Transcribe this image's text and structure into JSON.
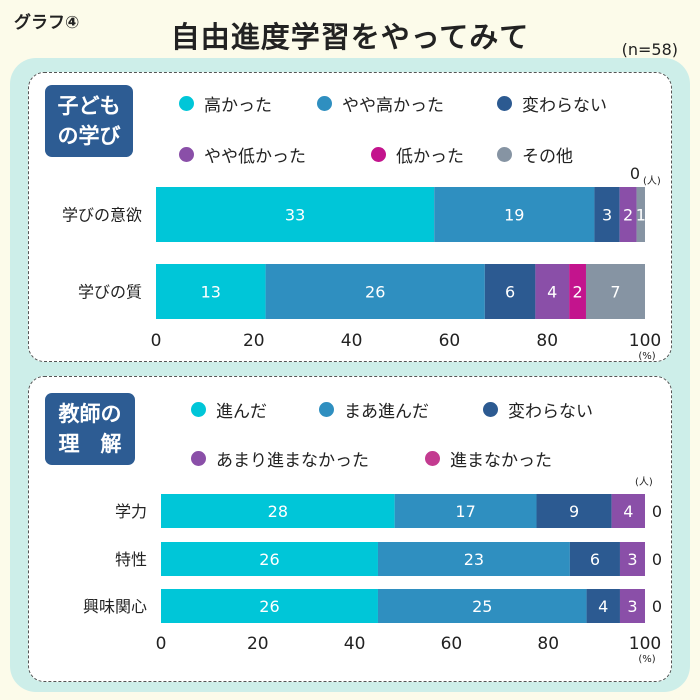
{
  "header": {
    "graph_label": "グラフ④",
    "title": "自由進度学習をやってみて",
    "n_label": "(n=58)"
  },
  "chart_data": [
    {
      "type": "bar",
      "stacked": true,
      "orientation": "horizontal",
      "section_label": [
        "子ども",
        "の学び"
      ],
      "unit_label": "(人)",
      "x_unit_label": "(%)",
      "xlim": [
        0,
        100
      ],
      "xticks": [
        "0",
        "20",
        "40",
        "60",
        "80",
        "100"
      ],
      "legend_position": "top",
      "categories": [
        "学びの意欲",
        "学びの質"
      ],
      "series": [
        {
          "name": "高かった",
          "color": "#00c6d8",
          "values": [
            33,
            13
          ]
        },
        {
          "name": "やや高かった",
          "color": "#2f8fc0",
          "values": [
            19,
            26
          ]
        },
        {
          "name": "変わらない",
          "color": "#2c5a91",
          "values": [
            3,
            6
          ]
        },
        {
          "name": "やや低かった",
          "color": "#8a4fa8",
          "values": [
            2,
            4
          ]
        },
        {
          "name": "低かった",
          "color": "#c3148d",
          "values": [
            0,
            2
          ]
        },
        {
          "name": "その他",
          "color": "#8694a3",
          "values": [
            1,
            7
          ]
        }
      ],
      "zero_labels": [
        {
          "category": "学びの意欲",
          "series": "低かった",
          "text": "0"
        }
      ]
    },
    {
      "type": "bar",
      "stacked": true,
      "orientation": "horizontal",
      "section_label": [
        "教師の",
        "理　解"
      ],
      "unit_label": "(人)",
      "x_unit_label": "(%)",
      "xlim": [
        0,
        100
      ],
      "xticks": [
        "0",
        "20",
        "40",
        "60",
        "80",
        "100"
      ],
      "legend_position": "top",
      "categories": [
        "学力",
        "特性",
        "興味関心"
      ],
      "series": [
        {
          "name": "進んだ",
          "color": "#00c6d8",
          "values": [
            28,
            26,
            26
          ]
        },
        {
          "name": "まあ進んだ",
          "color": "#2f8fc0",
          "values": [
            17,
            23,
            25
          ]
        },
        {
          "name": "変わらない",
          "color": "#2c5a91",
          "values": [
            9,
            6,
            4
          ]
        },
        {
          "name": "あまり進まなかった",
          "color": "#8a4fa8",
          "values": [
            4,
            3,
            3
          ]
        },
        {
          "name": "進まなかった",
          "color": "#c33b90",
          "values": [
            0,
            0,
            0
          ]
        }
      ],
      "zero_labels": [
        {
          "category": "学力",
          "series": "進まなかった",
          "text": "0"
        },
        {
          "category": "特性",
          "series": "進まなかった",
          "text": "0"
        },
        {
          "category": "興味関心",
          "series": "進まなかった",
          "text": "0"
        }
      ]
    }
  ]
}
